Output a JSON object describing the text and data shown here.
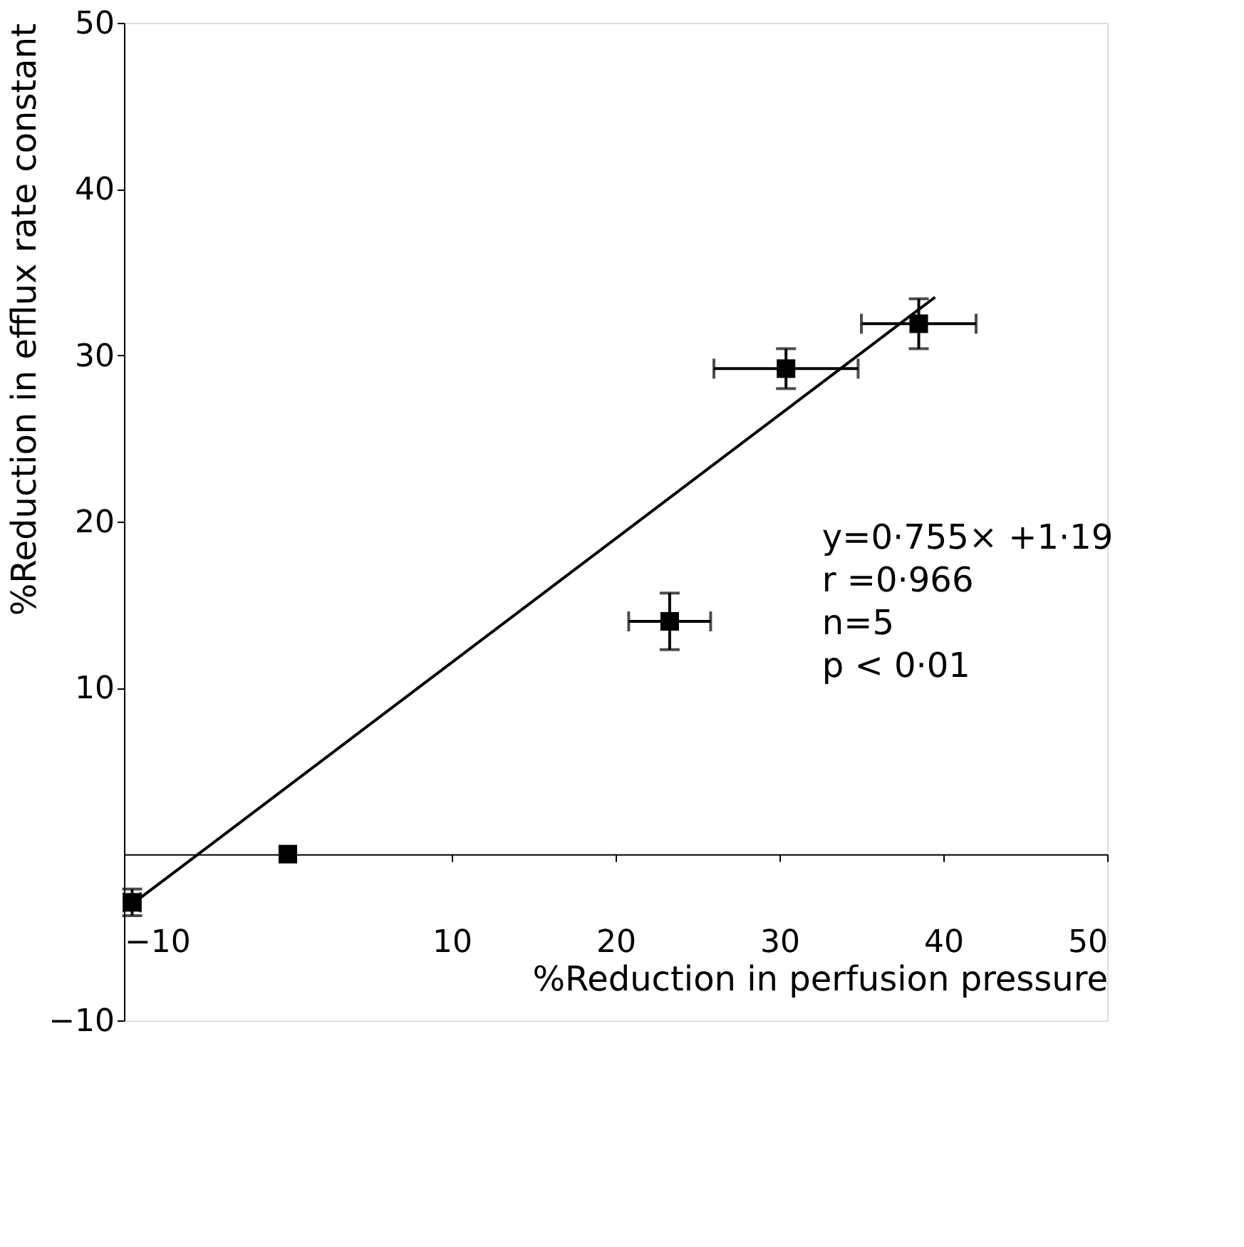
{
  "chart_data": {
    "type": "scatter",
    "xlabel": "%Reduction in perfusion pressure",
    "ylabel": "%Reduction in efflux  rate constant",
    "xlim": [
      -10,
      50
    ],
    "ylim": [
      -10,
      50
    ],
    "xticks": [
      -10,
      10,
      20,
      30,
      40,
      50
    ],
    "yticks": [
      -10,
      10,
      20,
      30,
      40,
      50
    ],
    "annotations": [
      "y=0·755× +1·19",
      "r =0·966",
      "n=5",
      "p < 0·01"
    ],
    "series": [
      {
        "marker": "square",
        "color": "#000000",
        "x": [
          -9.5,
          0,
          23.3,
          30.4,
          38.5
        ],
        "values": [
          -2.9,
          0,
          14.0,
          29.2,
          31.9
        ],
        "errors": [
          0.8,
          null,
          1.7,
          1.2,
          1.5
        ],
        "xerrors": [
          0.5,
          null,
          2.5,
          4.4,
          3.5
        ]
      },
      {
        "type": "line",
        "color": "#000000",
        "x": [
          -9.5,
          39.5
        ],
        "values": [
          -3.0,
          33.5
        ]
      }
    ]
  }
}
